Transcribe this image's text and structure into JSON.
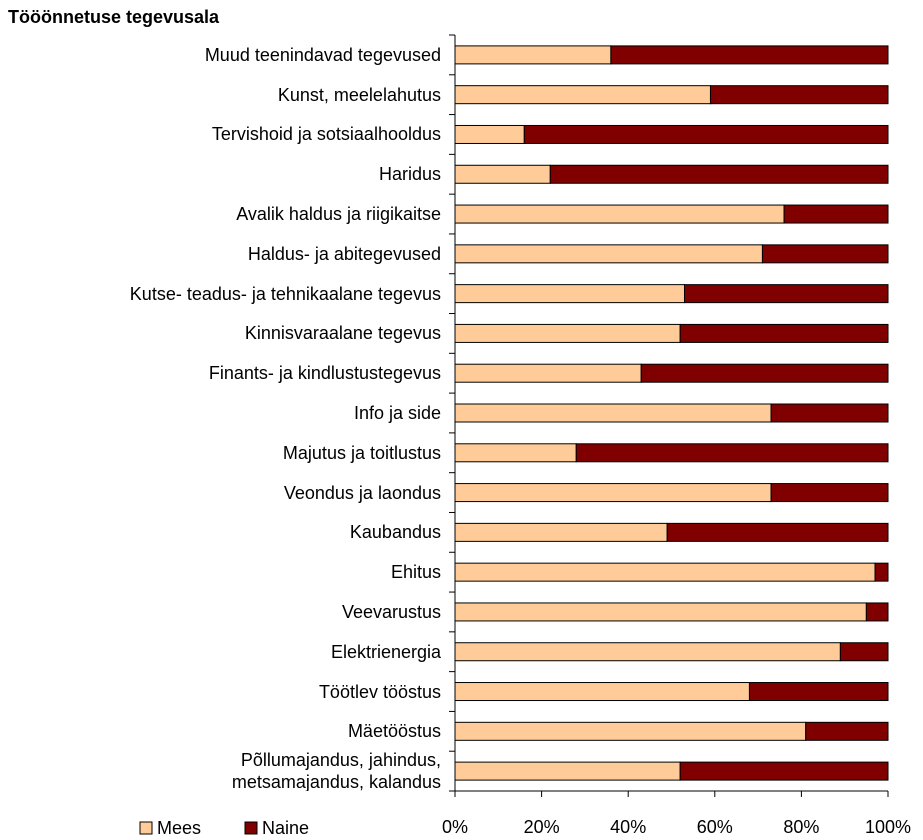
{
  "chart_data": {
    "type": "stacked_bar_horizontal",
    "title": "Tööönnetuse tegevusala",
    "categories": [
      "Muud teenindavad tegevused",
      "Kunst, meelelahutus",
      "Tervishoid ja sotsiaalhooldus",
      "Haridus",
      "Avalik haldus ja riigikaitse",
      "Haldus- ja abitegevused",
      "Kutse- teadus- ja tehnikaalane tegevus",
      "Kinnisvaraalane tegevus",
      "Finants- ja kindlustustegevus",
      "Info ja side",
      "Majutus ja toitlustus",
      "Veondus ja laondus",
      "Kaubandus",
      "Ehitus",
      "Veevarustus",
      "Elektrienergia",
      "Töötlev tööstus",
      "Mäetööstus",
      "Põllumajandus, jahindus,\nmetsamajandus, kalandus"
    ],
    "series": [
      {
        "name": "Mees",
        "color": "#ffcc99",
        "values": [
          36,
          59,
          16,
          22,
          76,
          71,
          53,
          52,
          43,
          73,
          28,
          73,
          49,
          97,
          95,
          89,
          68,
          81,
          52
        ]
      },
      {
        "name": "Naine",
        "color": "#800000",
        "values": [
          64,
          41,
          84,
          78,
          24,
          29,
          47,
          48,
          57,
          27,
          72,
          27,
          51,
          3,
          5,
          11,
          32,
          19,
          48
        ]
      }
    ],
    "xlim": [
      0,
      100
    ],
    "xticks": [
      {
        "value": 0,
        "label": "0%"
      },
      {
        "value": 20,
        "label": "20%"
      },
      {
        "value": 40,
        "label": "40%"
      },
      {
        "value": 60,
        "label": "60%"
      },
      {
        "value": 80,
        "label": "80%"
      },
      {
        "value": 100,
        "label": "100%"
      }
    ],
    "legend": "bottom-left"
  }
}
